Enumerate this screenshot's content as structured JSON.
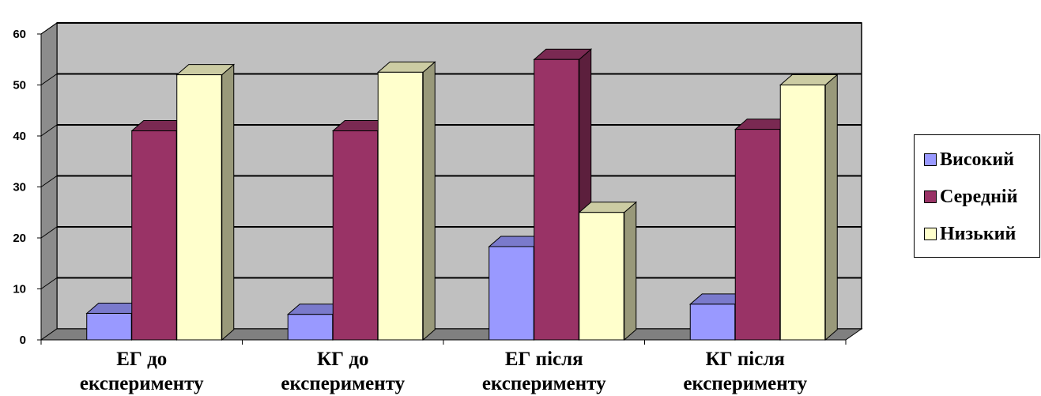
{
  "chart_data": {
    "type": "bar",
    "style": "3d-clustered-column",
    "categories": [
      "ЕГ до експерименту",
      "КГ до експерименту",
      "ЕГ після експерименту",
      "КГ після експерименту"
    ],
    "category_lines": [
      [
        "ЕГ до",
        "експерименту"
      ],
      [
        "КГ до",
        "експерименту"
      ],
      [
        "ЕГ після",
        "експерименту"
      ],
      [
        "КГ після",
        "експерименту"
      ]
    ],
    "series": [
      {
        "name": "Високий",
        "color": "#9999ff",
        "values": [
          5.2,
          5.0,
          18.3,
          7.0
        ]
      },
      {
        "name": "Середній",
        "color": "#993366",
        "values": [
          41.0,
          41.0,
          55.0,
          41.3
        ]
      },
      {
        "name": "Низький",
        "color": "#ffffcc",
        "values": [
          52.0,
          52.5,
          25.0,
          50.0
        ]
      }
    ],
    "y_ticks": [
      "0",
      "10",
      "20",
      "30",
      "40",
      "50",
      "60"
    ],
    "ylim": [
      0,
      60
    ],
    "grid": true,
    "legend_position": "right",
    "title": "",
    "xlabel": "",
    "ylabel": ""
  }
}
